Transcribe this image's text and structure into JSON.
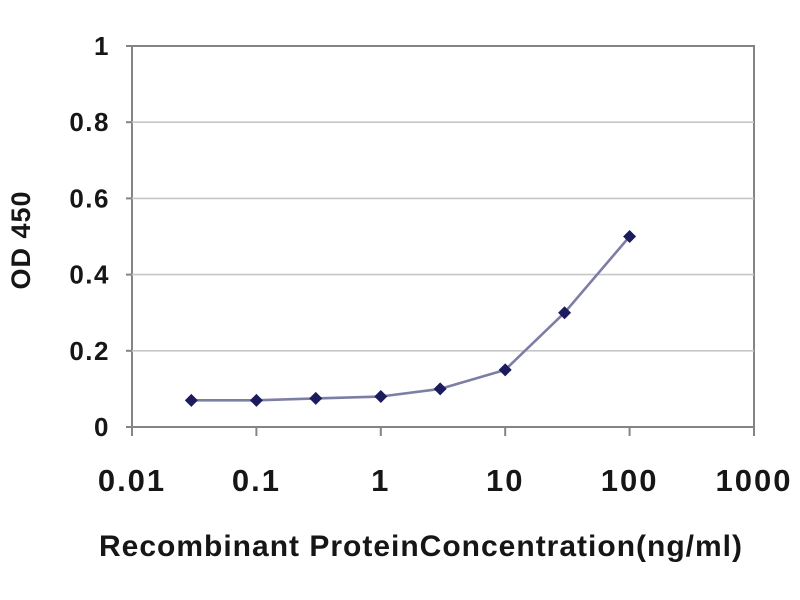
{
  "figure": {
    "kind": "elisa-standard-curve",
    "background": "#ffffff"
  },
  "chart_data": {
    "type": "line",
    "title": "",
    "xlabel": "Recombinant ProteinConcentration(ng/ml)",
    "ylabel": "OD 450",
    "x_scale": "log",
    "xlim": [
      0.01,
      1000
    ],
    "ylim": [
      0,
      1
    ],
    "x_ticks": [
      0.01,
      0.1,
      1,
      10,
      100,
      1000
    ],
    "x_tick_labels": [
      "0.01",
      "0.1",
      "1",
      "10",
      "100",
      "1000"
    ],
    "y_ticks": [
      0,
      0.2,
      0.4,
      0.6,
      0.8,
      1
    ],
    "y_tick_labels": [
      "0",
      "0.2",
      "0.4",
      "0.6",
      "0.8",
      "1"
    ],
    "grid": "horizontal",
    "legend_position": "none",
    "series": [
      {
        "name": "OD 450",
        "marker": "diamond",
        "points": [
          {
            "x": 0.03,
            "y": 0.07
          },
          {
            "x": 0.1,
            "y": 0.07
          },
          {
            "x": 0.3,
            "y": 0.075
          },
          {
            "x": 1,
            "y": 0.08
          },
          {
            "x": 3,
            "y": 0.1
          },
          {
            "x": 10,
            "y": 0.15
          },
          {
            "x": 30,
            "y": 0.3
          },
          {
            "x": 100,
            "y": 0.5
          }
        ]
      }
    ],
    "colors": {
      "marker": "#1b1b5e",
      "line": "#7d7ea6",
      "plot_border": "#848484",
      "gridline": "#c6c6c6",
      "tick": "#848484",
      "text": "#161616",
      "plot_background": "#ffffff"
    }
  }
}
